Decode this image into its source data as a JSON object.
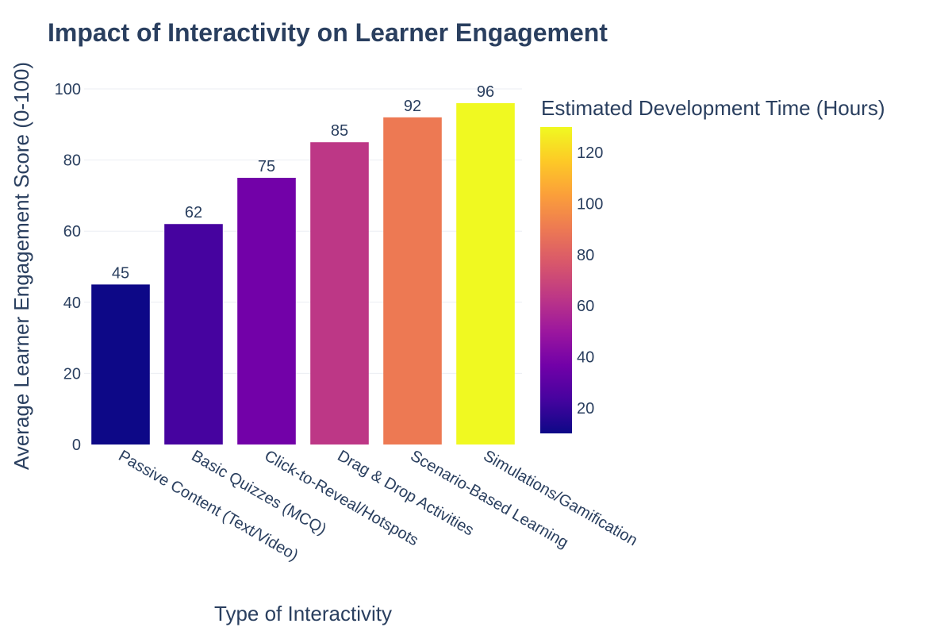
{
  "chart_data": {
    "type": "bar",
    "title": "Impact of Interactivity on Learner Engagement",
    "xlabel": "Type of Interactivity",
    "ylabel": "Average Learner Engagement Score (0-100)",
    "ylim": [
      0,
      100
    ],
    "yticks": [
      0,
      20,
      40,
      60,
      80,
      100
    ],
    "grid": true,
    "categories": [
      "Passive Content (Text/Video)",
      "Basic Quizzes (MCQ)",
      "Click-to-Reveal/Hotspots",
      "Drag & Drop Activities",
      "Scenario-Based Learning",
      "Simulations/Gamification"
    ],
    "values": [
      45,
      62,
      75,
      85,
      92,
      96
    ],
    "value_labels": [
      "45",
      "62",
      "75",
      "85",
      "92",
      "96"
    ],
    "color_values": [
      10,
      20,
      35,
      60,
      90,
      130
    ],
    "bar_colors": [
      "#0d0887",
      "#46039f",
      "#7201a8",
      "#bd3786",
      "#ed7953",
      "#f0f921"
    ],
    "colorbar": {
      "title": "Estimated Development Time (Hours)",
      "range": [
        10,
        130
      ],
      "ticks": [
        20,
        40,
        60,
        80,
        100,
        120
      ],
      "tick_labels": [
        "20",
        "40",
        "60",
        "80",
        "100",
        "120"
      ],
      "scale": [
        "#0d0887",
        "#46039f",
        "#7201a8",
        "#9c179e",
        "#bd3786",
        "#d8576b",
        "#ed7953",
        "#fb9f3a",
        "#fdca26",
        "#f0f921"
      ]
    }
  }
}
